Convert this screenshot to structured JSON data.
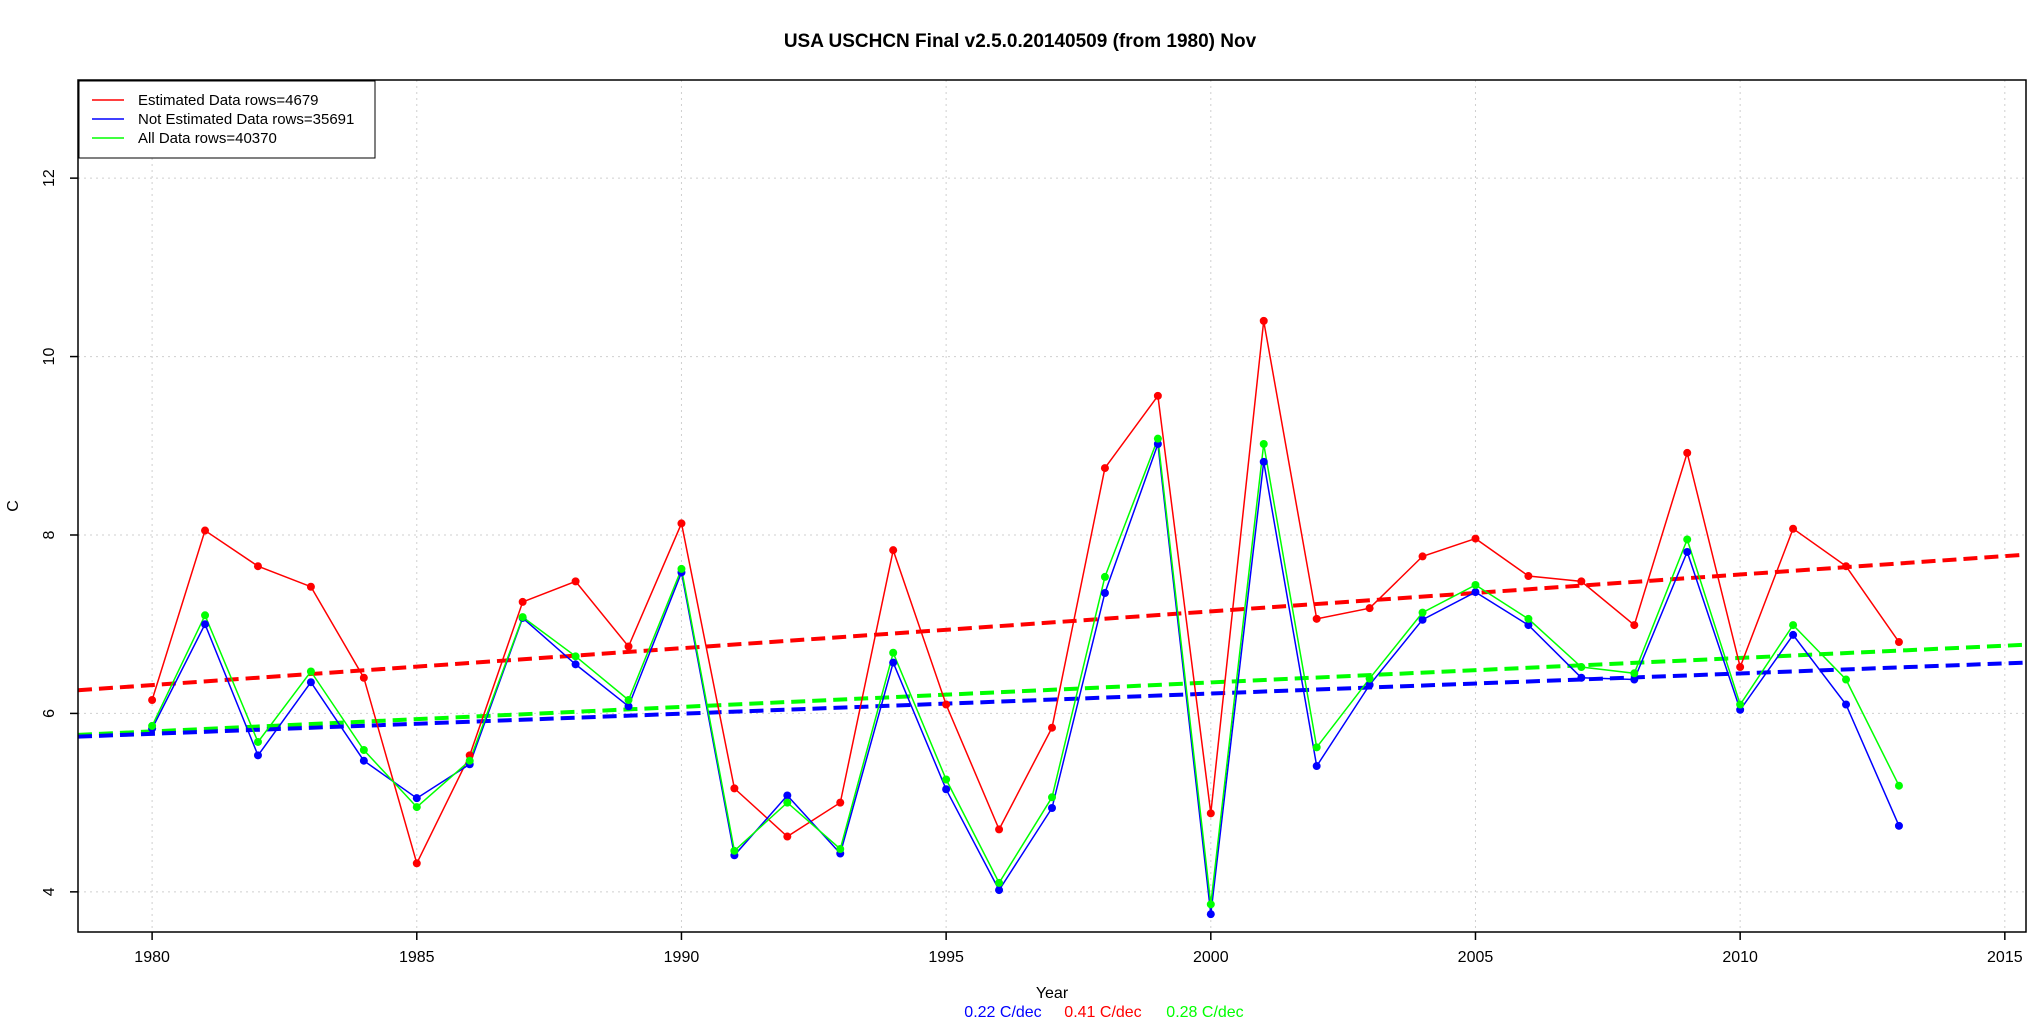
{
  "chart_data": {
    "type": "line",
    "title": "USA USCHCN Final v2.5.0.20140509 (from 1980) Nov",
    "xlabel": "Year",
    "ylabel": "C",
    "xlim": [
      1978.6,
      2015.4
    ],
    "ylim": [
      3.55,
      13.1
    ],
    "x_ticks": [
      1980,
      1985,
      1990,
      1995,
      2000,
      2005,
      2010,
      2015
    ],
    "y_ticks": [
      4,
      6,
      8,
      10,
      12
    ],
    "grid": true,
    "legend_position": "top-left",
    "x": [
      1980,
      1981,
      1982,
      1983,
      1984,
      1985,
      1986,
      1987,
      1988,
      1989,
      1990,
      1991,
      1992,
      1993,
      1994,
      1995,
      1996,
      1997,
      1998,
      1999,
      2000,
      2001,
      2002,
      2003,
      2004,
      2005,
      2006,
      2007,
      2008,
      2009,
      2010,
      2011,
      2012,
      2013
    ],
    "series": [
      {
        "name": "Estimated Data rows=4679",
        "color": "#ff0000",
        "values": [
          6.15,
          8.05,
          7.65,
          7.42,
          6.4,
          4.32,
          5.53,
          7.25,
          7.48,
          6.75,
          8.13,
          5.16,
          4.62,
          5.0,
          7.83,
          6.1,
          4.7,
          5.84,
          8.75,
          9.56,
          4.88,
          10.4,
          7.06,
          7.18,
          7.76,
          7.96,
          7.54,
          7.48,
          6.99,
          8.92,
          6.52,
          8.07,
          7.65,
          6.8
        ]
      },
      {
        "name": "Not Estimated Data rows=35691",
        "color": "#0000ff",
        "values": [
          5.83,
          7.0,
          5.53,
          6.35,
          5.47,
          5.05,
          5.43,
          7.07,
          6.55,
          6.08,
          7.58,
          4.41,
          5.08,
          4.43,
          6.57,
          5.15,
          4.02,
          4.94,
          7.35,
          9.02,
          3.75,
          8.82,
          5.41,
          6.32,
          7.05,
          7.36,
          6.99,
          6.4,
          6.38,
          7.81,
          6.04,
          6.88,
          6.1,
          4.74
        ]
      },
      {
        "name": "All Data rows=40370",
        "color": "#00ff00",
        "values": [
          5.86,
          7.1,
          5.68,
          6.47,
          5.59,
          4.95,
          5.47,
          7.08,
          6.64,
          6.15,
          7.62,
          4.46,
          5.0,
          4.48,
          6.68,
          5.26,
          4.1,
          5.06,
          7.53,
          9.08,
          3.86,
          9.02,
          5.62,
          6.39,
          7.13,
          7.44,
          7.06,
          6.52,
          6.45,
          7.95,
          6.1,
          6.99,
          6.38,
          5.19
        ]
      }
    ],
    "trends": [
      {
        "color": "#ff0000",
        "x": [
          1978.6,
          2015.4
        ],
        "y": [
          6.26,
          7.78
        ]
      },
      {
        "color": "#00ff00",
        "x": [
          1978.6,
          2015.4
        ],
        "y": [
          5.76,
          6.77
        ]
      },
      {
        "color": "#0000ff",
        "x": [
          1978.6,
          2015.4
        ],
        "y": [
          5.74,
          6.57
        ]
      }
    ],
    "trend_labels": [
      {
        "text": "0.22 C/dec",
        "color": "#0000ff"
      },
      {
        "text": "0.41 C/dec",
        "color": "#ff0000"
      },
      {
        "text": "0.28 C/dec",
        "color": "#00ff00"
      }
    ]
  }
}
